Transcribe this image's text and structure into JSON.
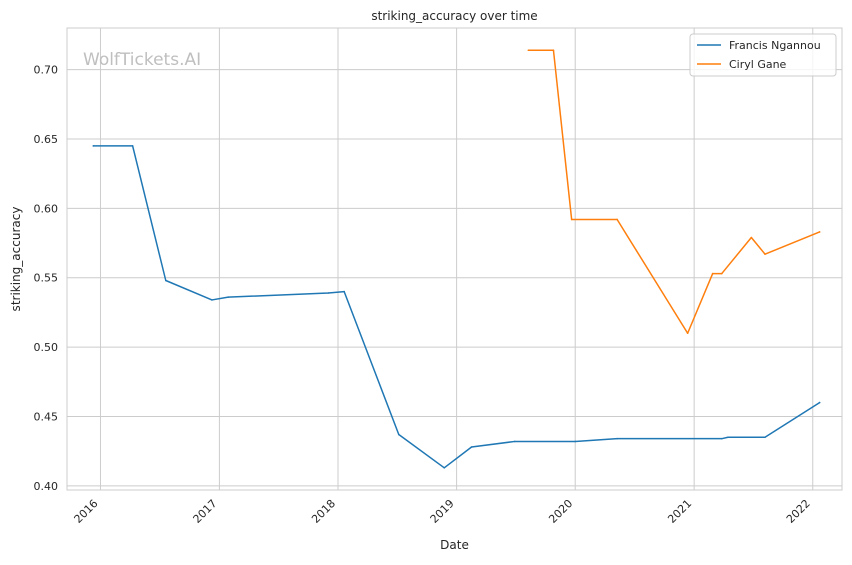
{
  "chart_data": {
    "type": "line",
    "title": "striking_accuracy over time",
    "xlabel": "Date",
    "ylabel": "striking_accuracy",
    "watermark": "WolfTickets.AI",
    "grid": true,
    "legend_position": "top-right",
    "xlim": [
      "2015-09-20",
      "2022-04-01"
    ],
    "ylim": [
      0.397,
      0.73
    ],
    "x_ticks": [
      "2016",
      "2017",
      "2018",
      "2019",
      "2020",
      "2021",
      "2022"
    ],
    "y_ticks": [
      "0.40",
      "0.45",
      "0.50",
      "0.55",
      "0.60",
      "0.65",
      "0.70"
    ],
    "series": [
      {
        "name": "Francis Ngannou",
        "color": "#1f77b4",
        "points": [
          [
            "2015-12-10",
            0.645
          ],
          [
            "2016-04-09",
            0.645
          ],
          [
            "2016-07-20",
            0.548
          ],
          [
            "2016-12-09",
            0.534
          ],
          [
            "2017-01-28",
            0.536
          ],
          [
            "2017-12-02",
            0.539
          ],
          [
            "2018-01-20",
            0.54
          ],
          [
            "2018-07-07",
            0.437
          ],
          [
            "2018-11-24",
            0.413
          ],
          [
            "2019-02-16",
            0.428
          ],
          [
            "2019-06-29",
            0.432
          ],
          [
            "2020-01-01",
            0.432
          ],
          [
            "2020-05-09",
            0.434
          ],
          [
            "2021-03-27",
            0.434
          ],
          [
            "2021-04-15",
            0.435
          ],
          [
            "2021-08-07",
            0.435
          ],
          [
            "2022-01-22",
            0.46
          ]
        ]
      },
      {
        "name": "Ciryl Gane",
        "color": "#ff7f0e",
        "points": [
          [
            "2019-08-10",
            0.714
          ],
          [
            "2019-10-26",
            0.714
          ],
          [
            "2019-12-21",
            0.592
          ],
          [
            "2020-05-09",
            0.592
          ],
          [
            "2020-12-12",
            0.51
          ],
          [
            "2021-02-27",
            0.553
          ],
          [
            "2021-03-27",
            0.553
          ],
          [
            "2021-06-26",
            0.579
          ],
          [
            "2021-08-07",
            0.567
          ],
          [
            "2022-01-22",
            0.583
          ]
        ]
      }
    ]
  }
}
